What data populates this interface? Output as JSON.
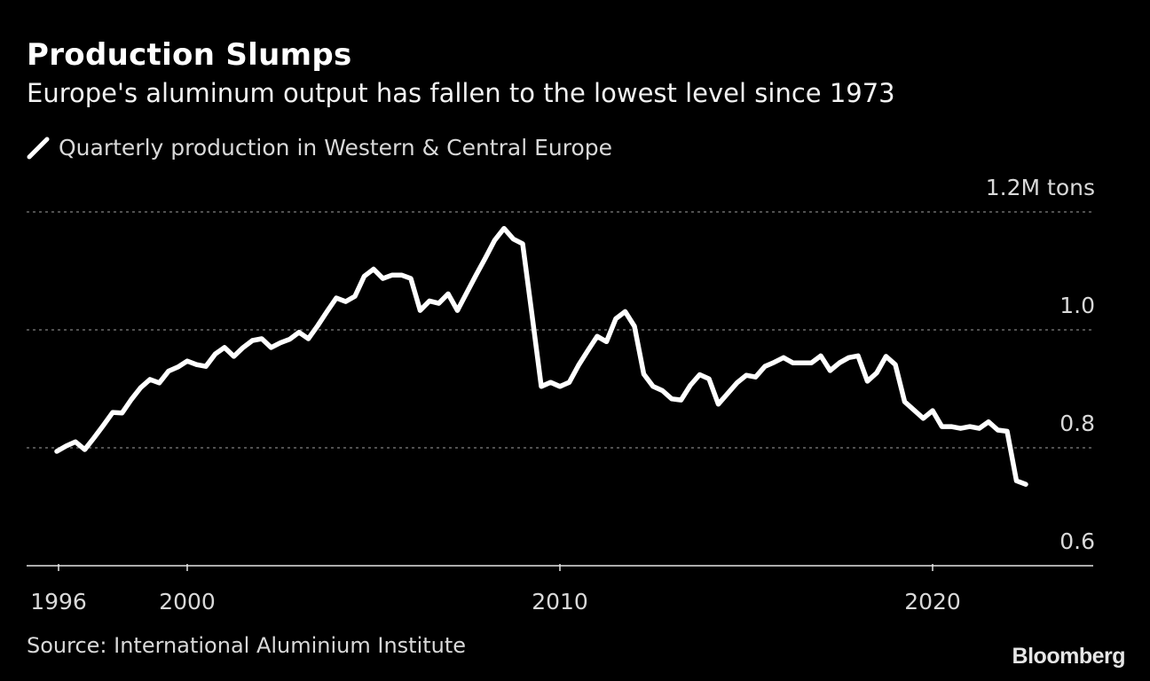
{
  "title": "Production Slumps",
  "subtitle": "Europe's aluminum output has fallen to the lowest level since 1973",
  "source": "Source: International Aluminium Institute",
  "logo": "Bloomberg",
  "chart_data": {
    "type": "line",
    "title": "Production Slumps",
    "subtitle": "Europe's aluminum output has fallen to the lowest level since 1973",
    "ylabel": "",
    "xlabel": "",
    "y_unit_label": "1.2M tons",
    "ylim": [
      0.6,
      1.2
    ],
    "yticks": [
      {
        "value": 1.2,
        "label": "1.2M tons"
      },
      {
        "value": 1.0,
        "label": "1.0"
      },
      {
        "value": 0.8,
        "label": "0.8"
      },
      {
        "value": 0.6,
        "label": "0.6"
      }
    ],
    "xticks": [
      {
        "value": 1996,
        "label": "1996"
      },
      {
        "value": 2000,
        "label": "2000"
      },
      {
        "value": 2010,
        "label": "2010"
      },
      {
        "value": 2020,
        "label": "2020"
      }
    ],
    "grid": true,
    "legend_position": "top-left",
    "colors": {
      "background": "#000000",
      "line": "#ffffff",
      "grid": "#808080"
    },
    "x_start": 1996.5,
    "x_step": 0.25,
    "series": [
      {
        "name": "Quarterly production in Western & Central Europe",
        "values": [
          0.794,
          0.803,
          0.81,
          0.797,
          0.817,
          0.838,
          0.86,
          0.859,
          0.882,
          0.902,
          0.916,
          0.91,
          0.93,
          0.937,
          0.947,
          0.941,
          0.938,
          0.959,
          0.97,
          0.955,
          0.97,
          0.982,
          0.985,
          0.97,
          0.978,
          0.984,
          0.996,
          0.985,
          1.007,
          1.031,
          1.054,
          1.048,
          1.057,
          1.091,
          1.103,
          1.087,
          1.093,
          1.093,
          1.087,
          1.033,
          1.049,
          1.045,
          1.061,
          1.033,
          1.063,
          1.093,
          1.122,
          1.152,
          1.172,
          1.154,
          1.146,
          1.026,
          0.904,
          0.911,
          0.904,
          0.911,
          0.94,
          0.965,
          0.989,
          0.98,
          1.019,
          1.031,
          1.006,
          0.925,
          0.904,
          0.897,
          0.883,
          0.881,
          0.906,
          0.924,
          0.917,
          0.874,
          0.892,
          0.91,
          0.923,
          0.92,
          0.938,
          0.945,
          0.953,
          0.944,
          0.944,
          0.944,
          0.956,
          0.931,
          0.944,
          0.953,
          0.956,
          0.913,
          0.927,
          0.955,
          0.941,
          0.878,
          0.864,
          0.85,
          0.863,
          0.836,
          0.836,
          0.833,
          0.836,
          0.833,
          0.844,
          0.83,
          0.828,
          0.744,
          0.738
        ]
      }
    ]
  }
}
